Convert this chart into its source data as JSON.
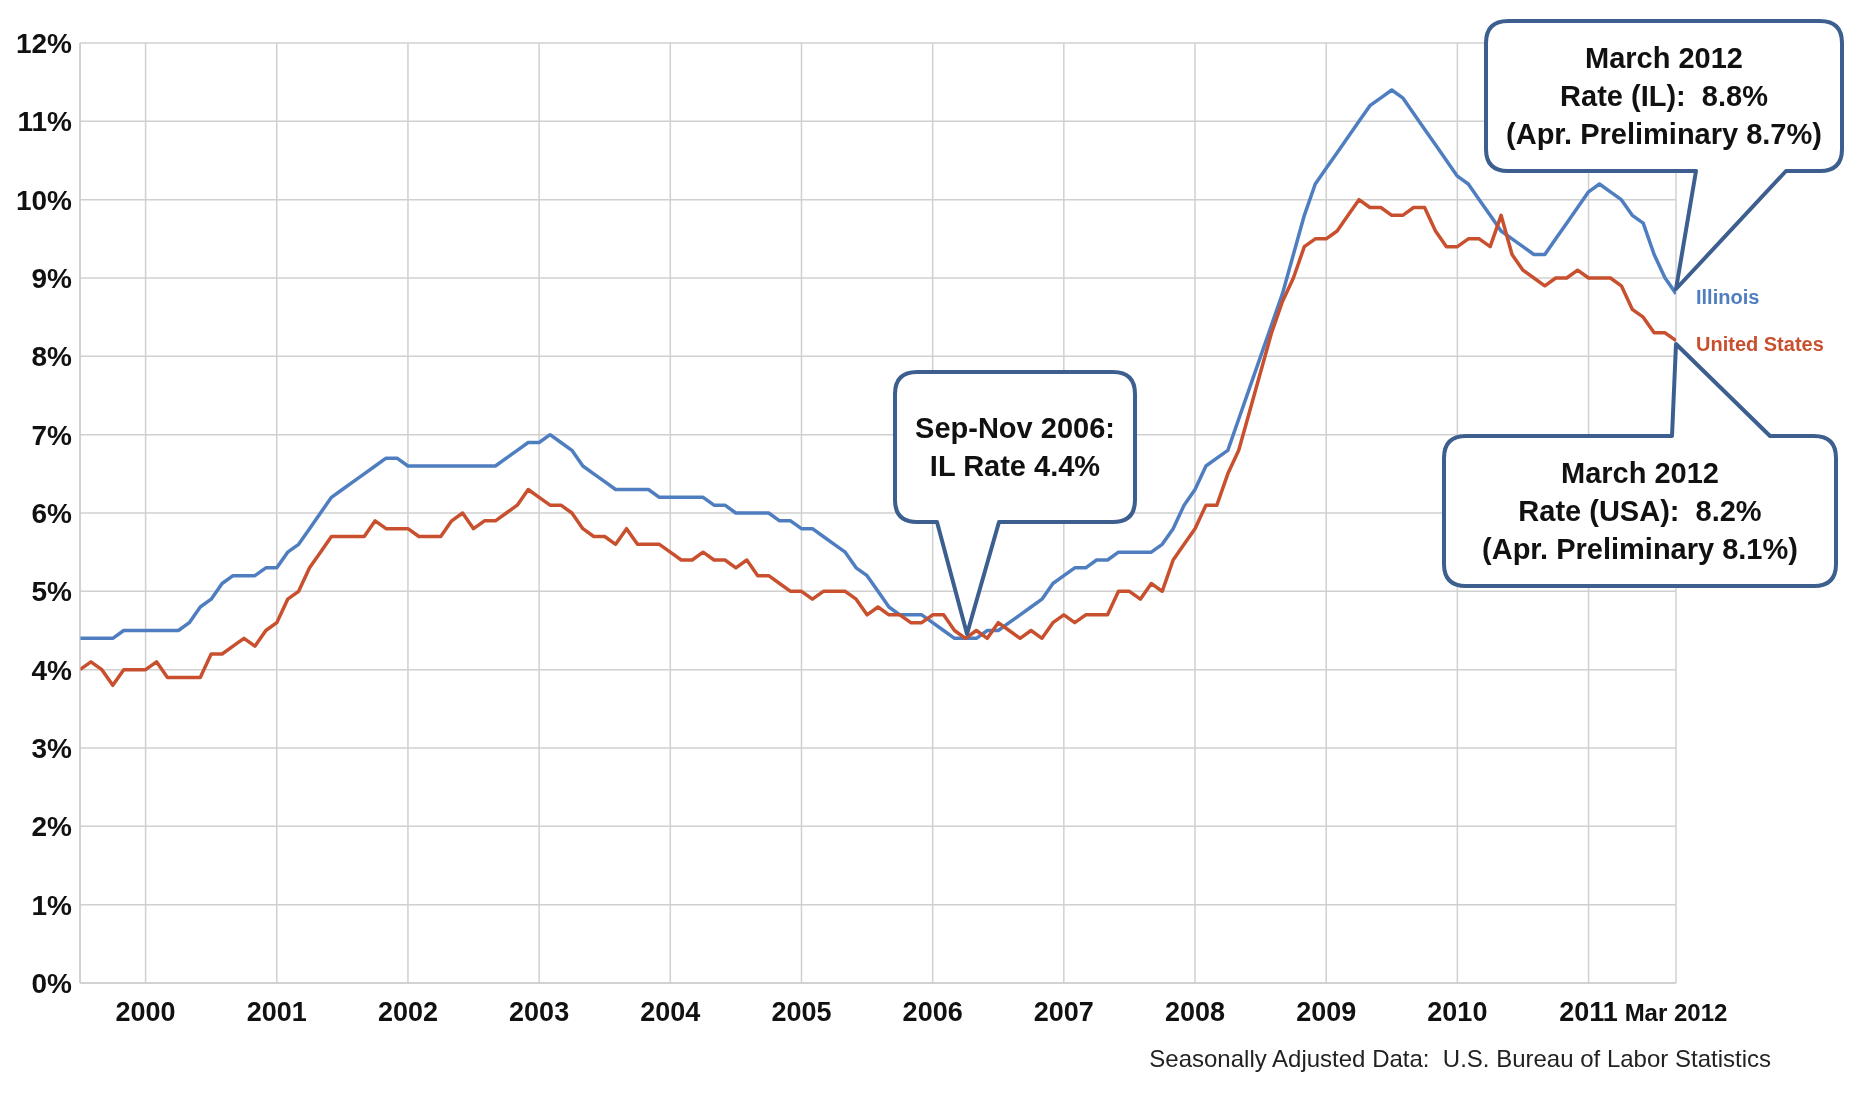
{
  "chart_data": {
    "type": "line",
    "grid": true,
    "marker": "none",
    "line_style": "solid",
    "xlim": [
      "2000-01",
      "2012-03"
    ],
    "xticks": [
      {
        "value": "2000-07",
        "label": "2000"
      },
      {
        "value": "2001-07",
        "label": "2001"
      },
      {
        "value": "2002-07",
        "label": "2002"
      },
      {
        "value": "2003-07",
        "label": "2003"
      },
      {
        "value": "2004-07",
        "label": "2004"
      },
      {
        "value": "2005-07",
        "label": "2005"
      },
      {
        "value": "2006-07",
        "label": "2006"
      },
      {
        "value": "2007-07",
        "label": "2007"
      },
      {
        "value": "2008-07",
        "label": "2008"
      },
      {
        "value": "2009-07",
        "label": "2009"
      },
      {
        "value": "2010-07",
        "label": "2010"
      },
      {
        "value": "2011-07",
        "label": "2011"
      },
      {
        "value": "2012-03",
        "label": "Mar 2012"
      }
    ],
    "ylim": [
      0,
      12
    ],
    "yticks": [
      {
        "value": 0,
        "label": "0%"
      },
      {
        "value": 1,
        "label": "1%"
      },
      {
        "value": 2,
        "label": "2%"
      },
      {
        "value": 3,
        "label": "3%"
      },
      {
        "value": 4,
        "label": "4%"
      },
      {
        "value": 5,
        "label": "5%"
      },
      {
        "value": 6,
        "label": "6%"
      },
      {
        "value": 7,
        "label": "7%"
      },
      {
        "value": 8,
        "label": "8%"
      },
      {
        "value": 9,
        "label": "9%"
      },
      {
        "value": 10,
        "label": "10%"
      },
      {
        "value": 11,
        "label": "11%"
      },
      {
        "value": 12,
        "label": "12%"
      }
    ],
    "x": [
      "2000-01",
      "2000-02",
      "2000-03",
      "2000-04",
      "2000-05",
      "2000-06",
      "2000-07",
      "2000-08",
      "2000-09",
      "2000-10",
      "2000-11",
      "2000-12",
      "2001-01",
      "2001-02",
      "2001-03",
      "2001-04",
      "2001-05",
      "2001-06",
      "2001-07",
      "2001-08",
      "2001-09",
      "2001-10",
      "2001-11",
      "2001-12",
      "2002-01",
      "2002-02",
      "2002-03",
      "2002-04",
      "2002-05",
      "2002-06",
      "2002-07",
      "2002-08",
      "2002-09",
      "2002-10",
      "2002-11",
      "2002-12",
      "2003-01",
      "2003-02",
      "2003-03",
      "2003-04",
      "2003-05",
      "2003-06",
      "2003-07",
      "2003-08",
      "2003-09",
      "2003-10",
      "2003-11",
      "2003-12",
      "2004-01",
      "2004-02",
      "2004-03",
      "2004-04",
      "2004-05",
      "2004-06",
      "2004-07",
      "2004-08",
      "2004-09",
      "2004-10",
      "2004-11",
      "2004-12",
      "2005-01",
      "2005-02",
      "2005-03",
      "2005-04",
      "2005-05",
      "2005-06",
      "2005-07",
      "2005-08",
      "2005-09",
      "2005-10",
      "2005-11",
      "2005-12",
      "2006-01",
      "2006-02",
      "2006-03",
      "2006-04",
      "2006-05",
      "2006-06",
      "2006-07",
      "2006-08",
      "2006-09",
      "2006-10",
      "2006-11",
      "2006-12",
      "2007-01",
      "2007-02",
      "2007-03",
      "2007-04",
      "2007-05",
      "2007-06",
      "2007-07",
      "2007-08",
      "2007-09",
      "2007-10",
      "2007-11",
      "2007-12",
      "2008-01",
      "2008-02",
      "2008-03",
      "2008-04",
      "2008-05",
      "2008-06",
      "2008-07",
      "2008-08",
      "2008-09",
      "2008-10",
      "2008-11",
      "2008-12",
      "2009-01",
      "2009-02",
      "2009-03",
      "2009-04",
      "2009-05",
      "2009-06",
      "2009-07",
      "2009-08",
      "2009-09",
      "2009-10",
      "2009-11",
      "2009-12",
      "2010-01",
      "2010-02",
      "2010-03",
      "2010-04",
      "2010-05",
      "2010-06",
      "2010-07",
      "2010-08",
      "2010-09",
      "2010-10",
      "2010-11",
      "2010-12",
      "2011-01",
      "2011-02",
      "2011-03",
      "2011-04",
      "2011-05",
      "2011-06",
      "2011-07",
      "2011-08",
      "2011-09",
      "2011-10",
      "2011-11",
      "2011-12",
      "2012-01",
      "2012-02",
      "2012-03"
    ],
    "series": [
      {
        "name": "Illinois",
        "color": "#4f7ec0",
        "values": [
          4.4,
          4.4,
          4.4,
          4.4,
          4.5,
          4.5,
          4.5,
          4.5,
          4.5,
          4.5,
          4.6,
          4.8,
          4.9,
          5.1,
          5.2,
          5.2,
          5.2,
          5.3,
          5.3,
          5.5,
          5.6,
          5.8,
          6.0,
          6.2,
          6.3,
          6.4,
          6.5,
          6.6,
          6.7,
          6.7,
          6.6,
          6.6,
          6.6,
          6.6,
          6.6,
          6.6,
          6.6,
          6.6,
          6.6,
          6.7,
          6.8,
          6.9,
          6.9,
          7.0,
          6.9,
          6.8,
          6.6,
          6.5,
          6.4,
          6.3,
          6.3,
          6.3,
          6.3,
          6.2,
          6.2,
          6.2,
          6.2,
          6.2,
          6.1,
          6.1,
          6.0,
          6.0,
          6.0,
          6.0,
          5.9,
          5.9,
          5.8,
          5.8,
          5.7,
          5.6,
          5.5,
          5.3,
          5.2,
          5.0,
          4.8,
          4.7,
          4.7,
          4.7,
          4.6,
          4.5,
          4.4,
          4.4,
          4.4,
          4.5,
          4.5,
          4.6,
          4.7,
          4.8,
          4.9,
          5.1,
          5.2,
          5.3,
          5.3,
          5.4,
          5.4,
          5.5,
          5.5,
          5.5,
          5.5,
          5.6,
          5.8,
          6.1,
          6.3,
          6.6,
          6.7,
          6.8,
          7.2,
          7.6,
          8.0,
          8.4,
          8.8,
          9.3,
          9.8,
          10.2,
          10.4,
          10.6,
          10.8,
          11.0,
          11.2,
          11.3,
          11.4,
          11.3,
          11.1,
          10.9,
          10.7,
          10.5,
          10.3,
          10.2,
          10.0,
          9.8,
          9.6,
          9.5,
          9.4,
          9.3,
          9.3,
          9.5,
          9.7,
          9.9,
          10.1,
          10.2,
          10.1,
          10.0,
          9.8,
          9.7,
          9.3,
          9.0,
          8.8
        ]
      },
      {
        "name": "United States",
        "color": "#c8502e",
        "values": [
          4.0,
          4.1,
          4.0,
          3.8,
          4.0,
          4.0,
          4.0,
          4.1,
          3.9,
          3.9,
          3.9,
          3.9,
          4.2,
          4.2,
          4.3,
          4.4,
          4.3,
          4.5,
          4.6,
          4.9,
          5.0,
          5.3,
          5.5,
          5.7,
          5.7,
          5.7,
          5.7,
          5.9,
          5.8,
          5.8,
          5.8,
          5.7,
          5.7,
          5.7,
          5.9,
          6.0,
          5.8,
          5.9,
          5.9,
          6.0,
          6.1,
          6.3,
          6.2,
          6.1,
          6.1,
          6.0,
          5.8,
          5.7,
          5.7,
          5.6,
          5.8,
          5.6,
          5.6,
          5.6,
          5.5,
          5.4,
          5.4,
          5.5,
          5.4,
          5.4,
          5.3,
          5.4,
          5.2,
          5.2,
          5.1,
          5.0,
          5.0,
          4.9,
          5.0,
          5.0,
          5.0,
          4.9,
          4.7,
          4.8,
          4.7,
          4.7,
          4.6,
          4.6,
          4.7,
          4.7,
          4.5,
          4.4,
          4.5,
          4.4,
          4.6,
          4.5,
          4.4,
          4.5,
          4.4,
          4.6,
          4.7,
          4.6,
          4.7,
          4.7,
          4.7,
          5.0,
          5.0,
          4.9,
          5.1,
          5.0,
          5.4,
          5.6,
          5.8,
          6.1,
          6.1,
          6.5,
          6.8,
          7.3,
          7.8,
          8.3,
          8.7,
          9.0,
          9.4,
          9.5,
          9.5,
          9.6,
          9.8,
          10.0,
          9.9,
          9.9,
          9.8,
          9.8,
          9.9,
          9.9,
          9.6,
          9.4,
          9.4,
          9.5,
          9.5,
          9.4,
          9.8,
          9.3,
          9.1,
          9.0,
          8.9,
          9.0,
          9.0,
          9.1,
          9.0,
          9.0,
          9.0,
          8.9,
          8.6,
          8.5,
          8.3,
          8.3,
          8.2
        ]
      }
    ],
    "annotations": [
      "Sep-Nov 2006:\nIL Rate 4.4%",
      "March 2012\nRate (IL):  8.8%\n(Apr. Preliminary 8.7%)",
      "March 2012\nRate (USA):  8.2%\n(Apr. Preliminary 8.1%)",
      "Seasonally Adjusted Data:  U.S. Bureau of Labor Statistics"
    ]
  }
}
